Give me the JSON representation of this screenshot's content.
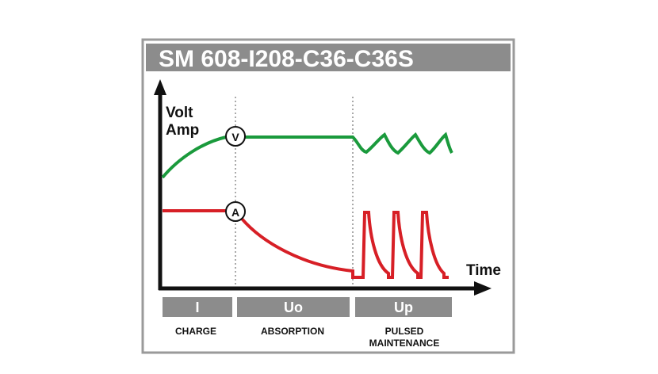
{
  "title": "SM 608-I208-C36-C36S",
  "axes": {
    "y_label_lines": [
      "Volt",
      "Amp"
    ],
    "x_label": "Time"
  },
  "curves": {
    "voltage_marker": "V",
    "current_marker": "A"
  },
  "phases": [
    {
      "code": "I",
      "name_lines": [
        "CHARGE"
      ]
    },
    {
      "code": "Uo",
      "name_lines": [
        "ABSORPTION"
      ]
    },
    {
      "code": "Up",
      "name_lines": [
        "PULSED",
        "MAINTENANCE"
      ]
    }
  ]
}
